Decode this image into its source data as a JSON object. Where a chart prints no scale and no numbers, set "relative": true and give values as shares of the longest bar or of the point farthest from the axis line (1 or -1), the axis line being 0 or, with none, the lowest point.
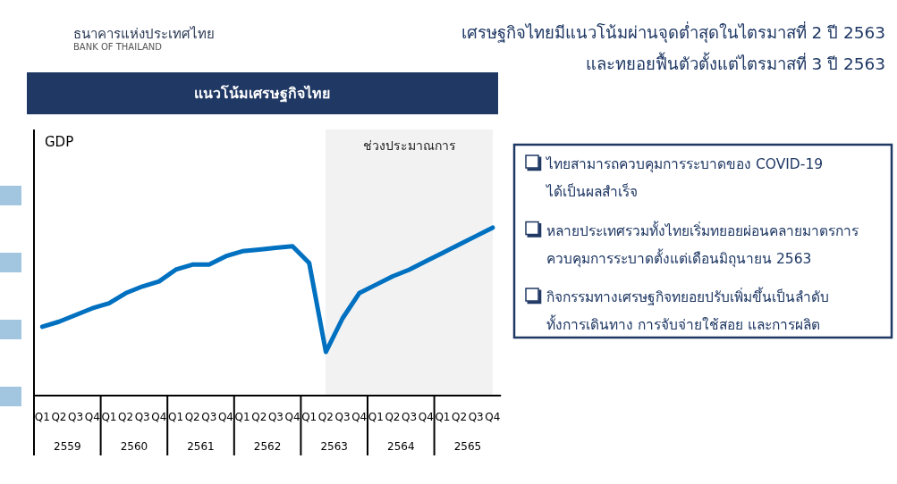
{
  "chart_data": {
    "type": "line",
    "title": "เศรษฐกิจไทยมีแนวโน้มผ่านจุดต่ำสุดในไตรมาสที่ 2 ปี 2563\nและทยอยฟื้นตัวตั้งแต่ไตรมาสที่ 3 ปี 2563",
    "subtitle": "แนวโน้มเศรษฐกิจไทย",
    "categories": [
      "Q1",
      "Q2",
      "Q3",
      "Q4",
      "Q1",
      "Q2",
      "Q3",
      "Q4",
      "Q1",
      "Q2",
      "Q3",
      "Q4",
      "Q1",
      "Q2",
      "Q3",
      "Q4",
      "Q1",
      "Q2",
      "Q3",
      "Q4",
      "Q1",
      "Q2",
      "Q3",
      "Q4",
      "Q1",
      "Q2",
      "Q3",
      "Q4"
    ],
    "series": [
      {
        "color": "#0070c0",
        "values": [
          0.41,
          0.44,
          0.48,
          0.52,
          0.55,
          0.61,
          0.65,
          0.68,
          0.75,
          0.78,
          0.78,
          0.83,
          0.86,
          0.87,
          0.88,
          0.89,
          0.79,
          0.26,
          0.46,
          0.61,
          0.66,
          0.71,
          0.75,
          0.8,
          0.85,
          0.9,
          0.95,
          1
        ]
      }
    ],
    "relative": true,
    "annotations": [
      "ธนาคารแห่งประเทศไทย",
      "BANK OF THAILAND",
      "GDP",
      "ช่วงประมาณการ",
      "ไทยสามารถควบคุมการระบาดของ COVID-19\nได้เป็นผลสำเร็จ",
      "หลายประเทศรวมทั้งไทยเริ่มทยอยผ่อนคลายมาตรการ\nควบคุมการระบาดตั้งแต่เดือนมิถุนายน 2563",
      "กิจกรรมทางเศรษฐกิจทยอยปรับเพิ่มขึ้นเป็นลำดับ\nทั้งการเดินทาง การจับจ่ายใช้สอย และการผลิต",
      "2559",
      "2560",
      "2561",
      "2562",
      "2563",
      "2564",
      "2565"
    ]
  }
}
